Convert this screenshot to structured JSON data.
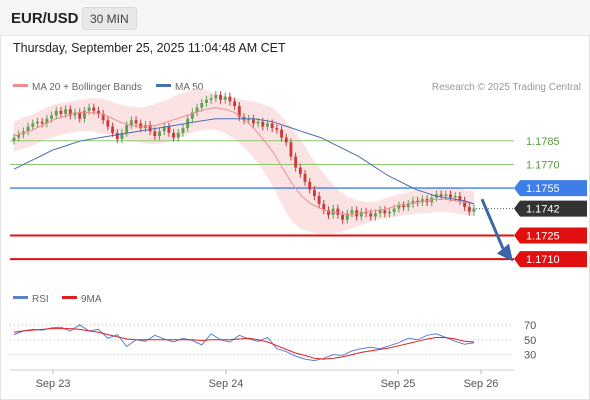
{
  "header": {
    "symbol": "EUR/USD",
    "timeframe": "30 MIN",
    "datetime": "Thursday, September 25, 2025 11:04:48 AM CET"
  },
  "legend": {
    "ma20": "MA 20 + Bollinger Bands",
    "ma50": "MA 50",
    "credit": "Research © 2025 Trading Central",
    "rsi": "RSI",
    "rsi_ma": "9MA"
  },
  "colors": {
    "up": "#5fa055",
    "down": "#c83c3c",
    "bollinger": "#fbdada",
    "ma20": "#f08c8c",
    "ma50": "#4a6fb0",
    "level_green": "#8cc870",
    "level_blue": "#3f7ee8",
    "level_red": "#e01010",
    "current": "#333333",
    "rsi": "#5b80d0",
    "rsi_ma": "#e02020",
    "forecast_arrow": "#3a66a8"
  },
  "chart_data": {
    "type": "candlestick",
    "series_names": [
      "MA 20 + Bollinger Bands",
      "MA 50"
    ],
    "x_tick_labels": [
      "Sep 23",
      "Sep 24",
      "Sep 25",
      "Sep 26"
    ],
    "ylim": [
      1.16955,
      1.18045
    ],
    "levels": [
      {
        "label": "1.1785",
        "value": 1.1785,
        "kind": "resistance"
      },
      {
        "label": "1.1770",
        "value": 1.177,
        "kind": "resistance"
      },
      {
        "label": "1.1755",
        "value": 1.1755,
        "kind": "pivot"
      },
      {
        "label": "1.1742",
        "value": 1.1742,
        "kind": "current"
      },
      {
        "label": "1.1725",
        "value": 1.1725,
        "kind": "support"
      },
      {
        "label": "1.1710",
        "value": 1.171,
        "kind": "support"
      }
    ],
    "forecast": {
      "from": 1.1748,
      "to": 1.1711,
      "direction": "down"
    },
    "closes": [
      1.1787,
      1.1789,
      1.1791,
      1.1794,
      1.1796,
      1.1797,
      1.1796,
      1.1799,
      1.1801,
      1.1804,
      1.1802,
      1.1805,
      1.1801,
      1.1803,
      1.1799,
      1.1804,
      1.1806,
      1.1804,
      1.1802,
      1.1798,
      1.1794,
      1.179,
      1.1786,
      1.179,
      1.1795,
      1.1798,
      1.1796,
      1.1793,
      1.1795,
      1.1791,
      1.1788,
      1.1791,
      1.1794,
      1.179,
      1.1787,
      1.179,
      1.1793,
      1.1799,
      1.1803,
      1.1806,
      1.1809,
      1.1811,
      1.1812,
      1.1814,
      1.1811,
      1.1813,
      1.181,
      1.1807,
      1.18,
      1.1798,
      1.1799,
      1.1796,
      1.1797,
      1.1794,
      1.1796,
      1.1793,
      1.1792,
      1.1787,
      1.1784,
      1.1775,
      1.1768,
      1.1764,
      1.1759,
      1.1754,
      1.175,
      1.1745,
      1.1741,
      1.1738,
      1.1742,
      1.1738,
      1.1735,
      1.1739,
      1.1741,
      1.1737,
      1.174,
      1.1739,
      1.1737,
      1.1739,
      1.1741,
      1.1739,
      1.174,
      1.1742,
      1.1744,
      1.1743,
      1.1745,
      1.1747,
      1.1746,
      1.1748,
      1.1746,
      1.1749,
      1.1751,
      1.175,
      1.1751,
      1.1749,
      1.175,
      1.1747,
      1.1743,
      1.174,
      1.1742
    ],
    "ma50": [
      1.1767,
      1.177,
      1.1773,
      1.1776,
      1.1779,
      1.1781,
      1.1783,
      1.1785,
      1.1786,
      1.1787,
      1.1788,
      1.1789,
      1.179,
      1.1791,
      1.1792,
      1.1793,
      1.1794,
      1.1795,
      1.1796,
      1.1797,
      1.1798,
      1.1799,
      1.1799,
      1.1799,
      1.1799,
      1.1799,
      1.1798,
      1.1797,
      1.1795,
      1.1793,
      1.1791,
      1.1789,
      1.1787,
      1.1784,
      1.1781,
      1.1778,
      1.1775,
      1.1771,
      1.1767,
      1.1763,
      1.176,
      1.1757,
      1.1754,
      1.1752,
      1.175,
      1.1749,
      1.1748,
      1.1747,
      1.1745
    ],
    "ma20": [
      1.1788,
      1.179,
      1.1792,
      1.1795,
      1.1798,
      1.18,
      1.1802,
      1.1803,
      1.1803,
      1.1802,
      1.18,
      1.1797,
      1.1795,
      1.1794,
      1.1794,
      1.1795,
      1.1797,
      1.1799,
      1.1801,
      1.1803,
      1.1805,
      1.1806,
      1.1805,
      1.1803,
      1.1799,
      1.1793,
      1.1786,
      1.1778,
      1.1768,
      1.1758,
      1.175,
      1.1745,
      1.1742,
      1.174,
      1.1739,
      1.1738,
      1.1739,
      1.174,
      1.1741,
      1.1742,
      1.1744,
      1.1745,
      1.1746,
      1.1747,
      1.1748,
      1.1748,
      1.1747,
      1.1746,
      1.1745
    ],
    "band_upper": [
      1.1797,
      1.18,
      1.1802,
      1.1805,
      1.1808,
      1.1809,
      1.181,
      1.1811,
      1.1812,
      1.1812,
      1.181,
      1.1808,
      1.1807,
      1.1806,
      1.1807,
      1.1809,
      1.1811,
      1.1814,
      1.1816,
      1.1818,
      1.1817,
      1.1815,
      1.1813,
      1.1812,
      1.1811,
      1.181,
      1.1808,
      1.1806,
      1.18,
      1.1793,
      1.1785,
      1.1775,
      1.1767,
      1.1759,
      1.1753,
      1.1749,
      1.1747,
      1.1746,
      1.1747,
      1.1749,
      1.1751,
      1.1752,
      1.1754,
      1.1755,
      1.1756,
      1.1756,
      1.1755,
      1.1754,
      1.1753
    ],
    "band_lower": [
      1.1778,
      1.178,
      1.1782,
      1.1785,
      1.1787,
      1.1789,
      1.179,
      1.1791,
      1.1791,
      1.179,
      1.1789,
      1.1787,
      1.1785,
      1.1784,
      1.1783,
      1.1783,
      1.1784,
      1.1786,
      1.1789,
      1.1791,
      1.1792,
      1.1792,
      1.179,
      1.1786,
      1.1781,
      1.1774,
      1.1766,
      1.1756,
      1.1744,
      1.1734,
      1.1729,
      1.1727,
      1.1726,
      1.1726,
      1.1727,
      1.1729,
      1.1731,
      1.1733,
      1.1735,
      1.1736,
      1.1737,
      1.1738,
      1.1739,
      1.1739,
      1.174,
      1.174,
      1.1739,
      1.1738,
      1.1737
    ],
    "rsi": {
      "ticks": [
        70,
        50,
        30
      ],
      "ylim": [
        12,
        82
      ],
      "rsi": [
        57,
        62,
        64,
        63,
        66,
        67,
        62,
        70,
        62,
        64,
        52,
        57,
        41,
        50,
        48,
        56,
        51,
        47,
        52,
        49,
        43,
        58,
        50,
        47,
        56,
        51,
        48,
        53,
        38,
        34,
        28,
        24,
        22,
        25,
        30,
        29,
        35,
        38,
        40,
        38,
        42,
        46,
        52,
        50,
        56,
        58,
        53,
        48,
        44,
        46
      ],
      "rsi_ma": [
        60,
        62,
        63,
        64,
        65,
        65,
        65,
        64,
        62,
        60,
        57,
        54,
        51,
        50,
        50,
        50,
        50,
        50,
        50,
        50,
        49,
        50,
        50,
        50,
        51,
        52,
        50,
        47,
        42,
        37,
        32,
        29,
        25,
        24,
        25,
        27,
        30,
        33,
        35,
        37,
        39,
        42,
        45,
        48,
        51,
        53,
        53,
        51,
        48,
        47
      ]
    }
  }
}
